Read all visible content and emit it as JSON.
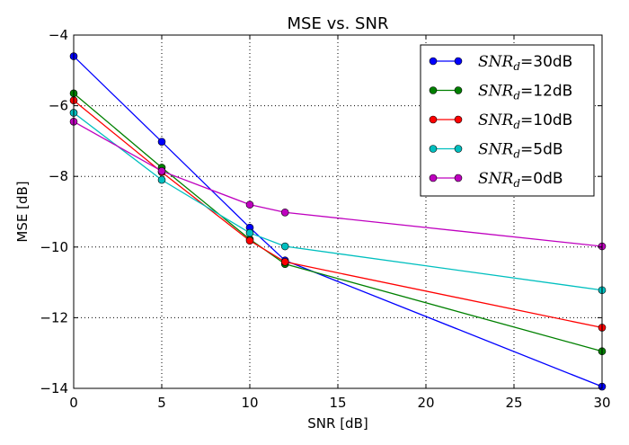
{
  "chart_data": {
    "type": "line",
    "title": "MSE vs. SNR",
    "xlabel": "SNR [dB]",
    "ylabel": "MSE [dB]",
    "xlim": [
      0,
      30
    ],
    "ylim": [
      -14,
      -4
    ],
    "xticks": [
      0,
      5,
      10,
      15,
      20,
      25,
      30
    ],
    "yticks": [
      -14,
      -12,
      -10,
      -8,
      -6,
      -4
    ],
    "grid": true,
    "legend_position": "top-right",
    "x": [
      0,
      5,
      10,
      12,
      30
    ],
    "series": [
      {
        "name": "SNRd=30dB",
        "legend_math": "SNR",
        "legend_sub": "d",
        "legend_suffix": "=30dB",
        "color": "#0000ff",
        "values": [
          -4.6,
          -7.02,
          -9.45,
          -10.38,
          -13.95
        ]
      },
      {
        "name": "SNRd=12dB",
        "legend_math": "SNR",
        "legend_sub": "d",
        "legend_suffix": "=12dB",
        "color": "#008000",
        "values": [
          -5.65,
          -7.75,
          -9.78,
          -10.48,
          -12.95
        ]
      },
      {
        "name": "SNRd=10dB",
        "legend_math": "SNR",
        "legend_sub": "d",
        "legend_suffix": "=10dB",
        "color": "#ff0000",
        "values": [
          -5.85,
          -7.88,
          -9.82,
          -10.42,
          -12.28
        ]
      },
      {
        "name": "SNRd=5dB",
        "legend_math": "SNR",
        "legend_sub": "d",
        "legend_suffix": "=5dB",
        "color": "#00bfbf",
        "values": [
          -6.2,
          -8.1,
          -9.6,
          -9.98,
          -11.22
        ]
      },
      {
        "name": "SNRd=0dB",
        "legend_math": "SNR",
        "legend_sub": "d",
        "legend_suffix": "=0dB",
        "color": "#bf00bf",
        "values": [
          -6.45,
          -7.85,
          -8.8,
          -9.02,
          -9.98
        ]
      }
    ]
  }
}
